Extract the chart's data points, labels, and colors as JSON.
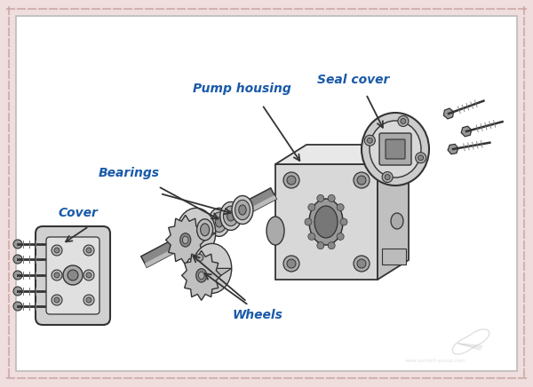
{
  "background_color": "#f0dede",
  "inner_bg_color": "#ffffff",
  "label_color": "#1a5aaa",
  "drawing_color": "#333333",
  "drawing_color_light": "#666666",
  "labels": {
    "pump_housing": "Pump housing",
    "seal_cover": "Seal cover",
    "bearings": "Bearings",
    "cover": "Cover",
    "wheels": "Wheels"
  },
  "figsize": [
    6.0,
    4.36
  ],
  "dpi": 100
}
